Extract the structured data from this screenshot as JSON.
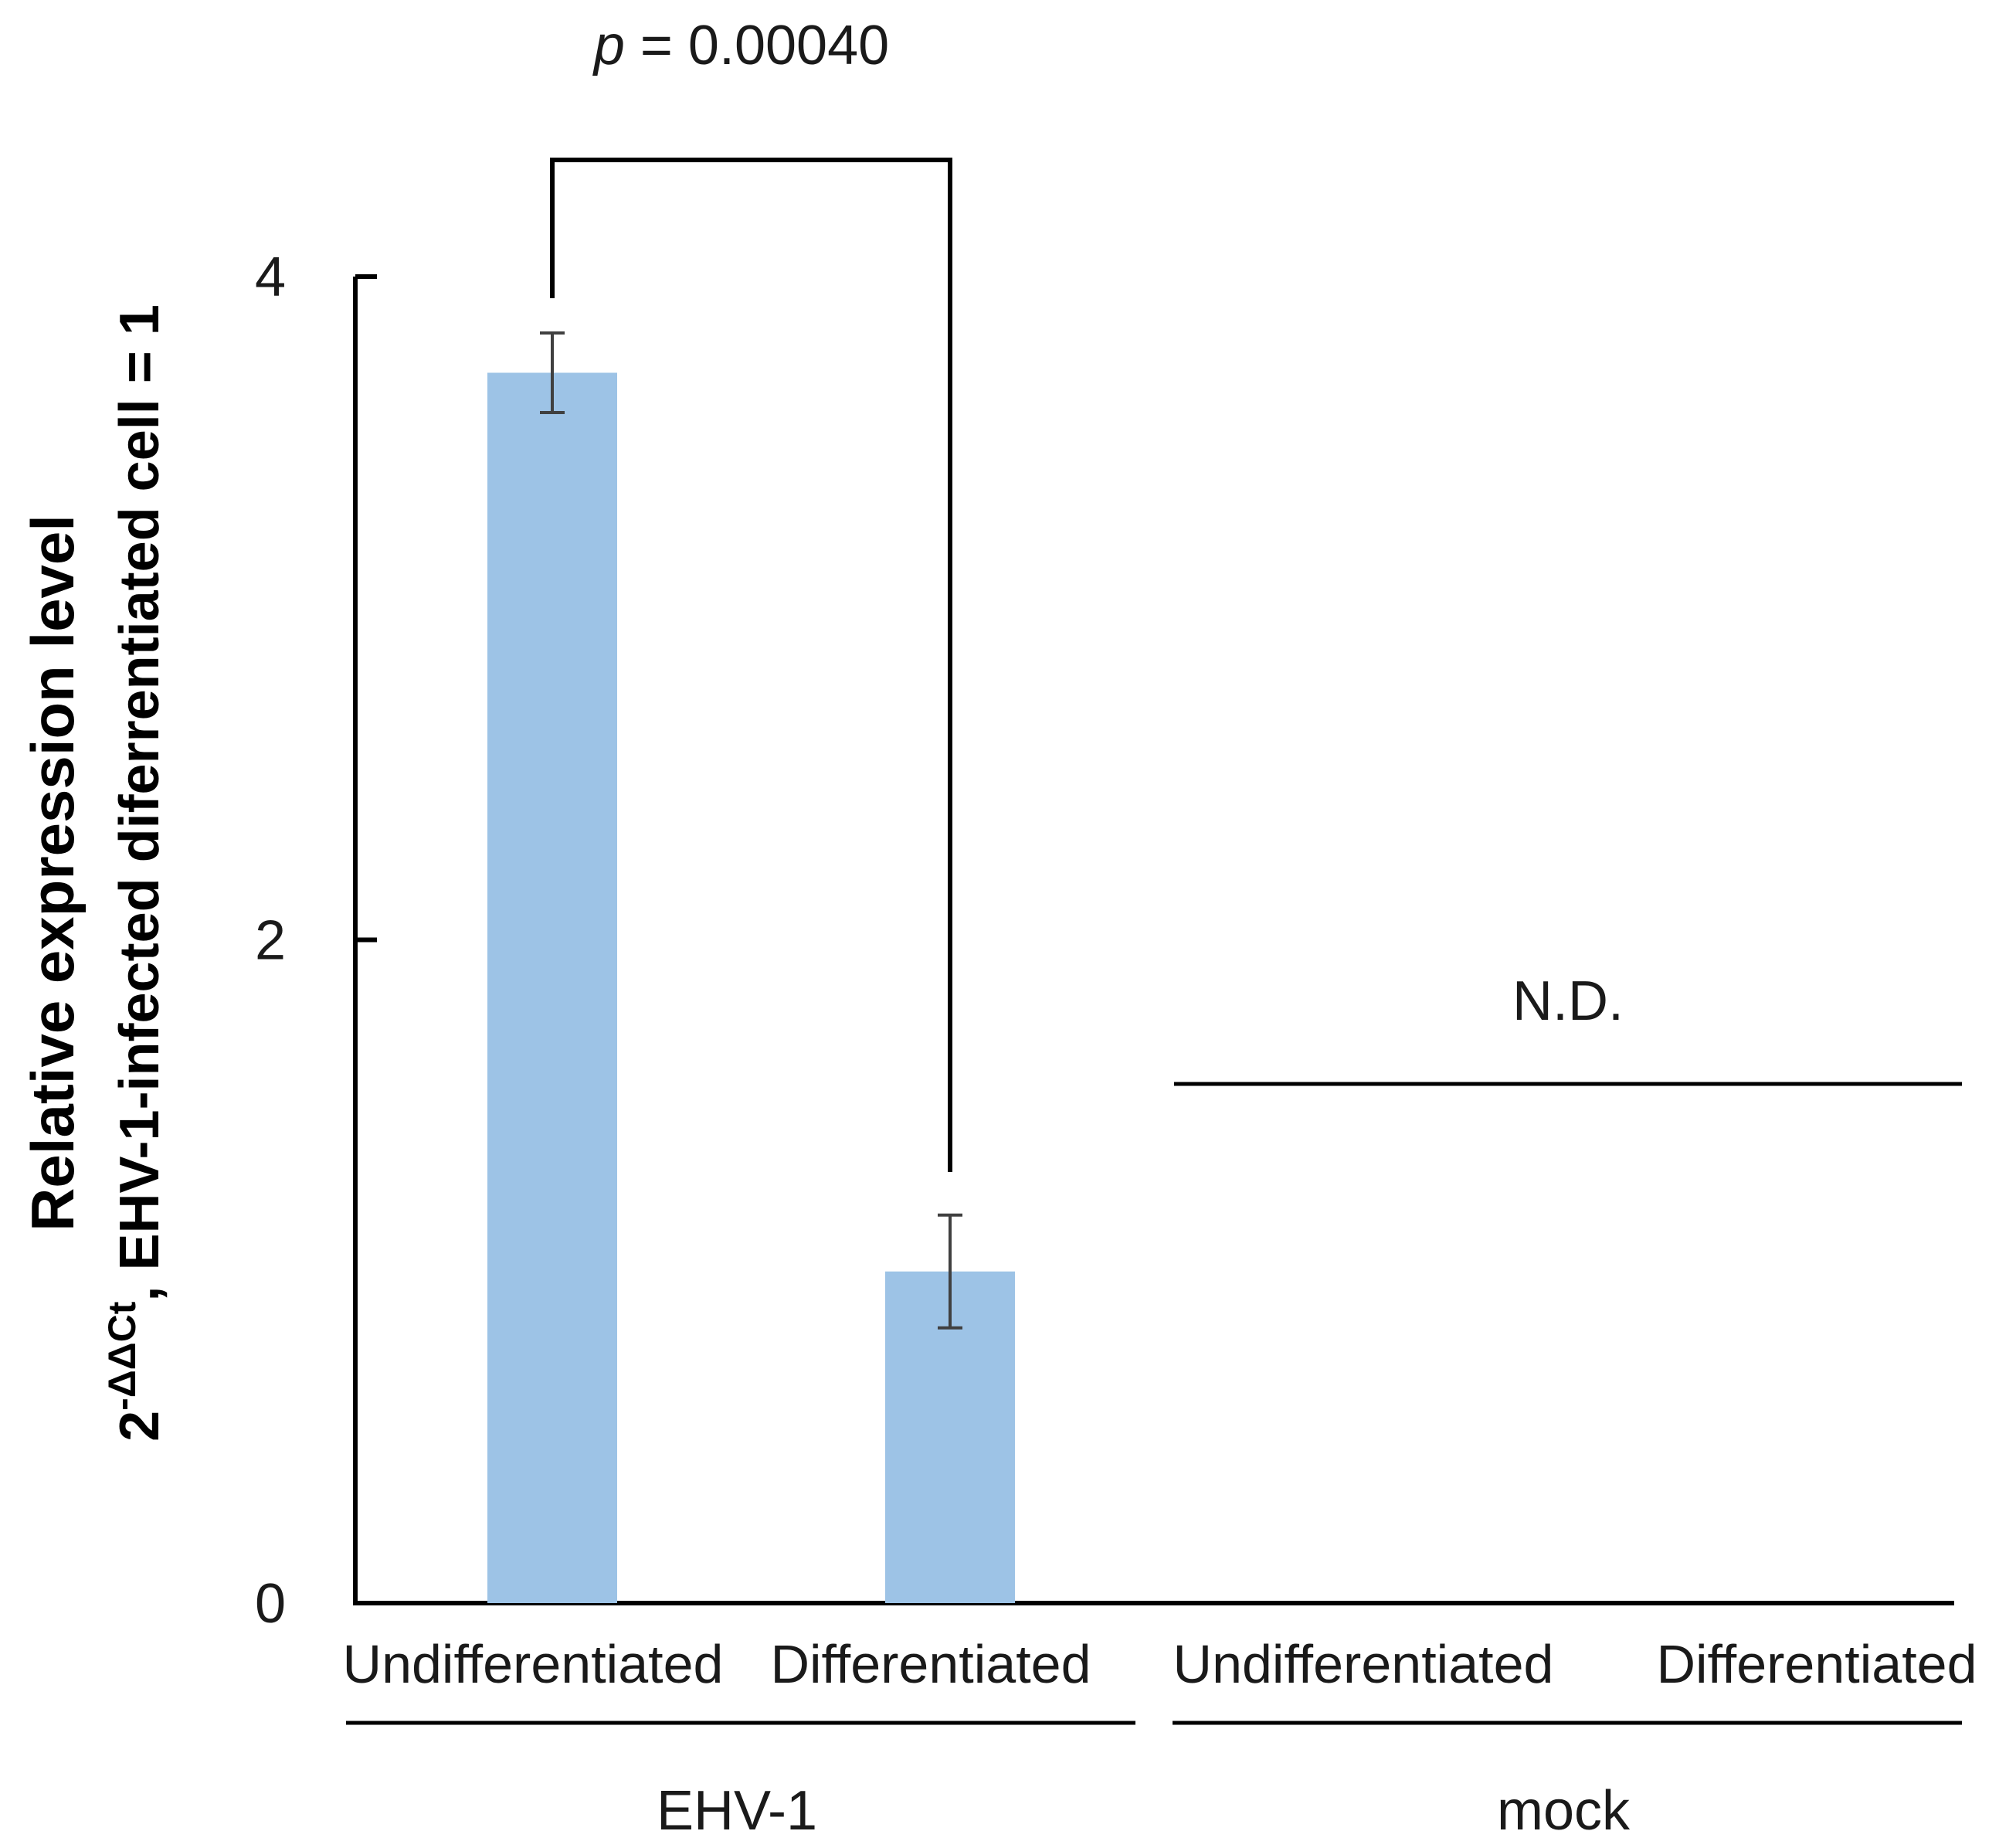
{
  "chart_data": {
    "type": "bar",
    "categories": [
      "Undifferentiated",
      "Differentiated",
      "Undifferentiated",
      "Differentiated"
    ],
    "groups": [
      {
        "label": "EHV-1",
        "categories": [
          0,
          1
        ]
      },
      {
        "label": "mock",
        "categories": [
          2,
          3
        ]
      }
    ],
    "series": [
      {
        "values": [
          3.71,
          1.0,
          null,
          null
        ],
        "errors": [
          0.12,
          0.17,
          null,
          null
        ]
      }
    ],
    "ylabel_line1": "Relative expression level",
    "ylabel_line2_base": "2",
    "ylabel_line2_sup": "-ΔΔCt",
    "ylabel_line2_rest": ", EHV-1-infected diferrentiated cell = 1",
    "yticks": [
      0,
      2,
      4
    ],
    "ylim": [
      0,
      4
    ],
    "grid": false,
    "bar_color": "#9dc3e6",
    "annotations": {
      "significance": {
        "between": [
          0,
          1
        ],
        "p_label_italic": "p",
        "p_label_rest": " = 0.00040"
      },
      "not_detected": {
        "group": 1,
        "text": "N.D."
      }
    }
  }
}
